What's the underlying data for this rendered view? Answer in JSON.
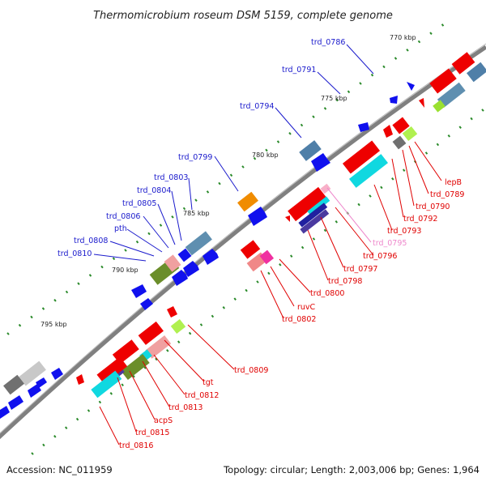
{
  "title": "Thermomicrobium roseum DSM 5159, complete genome",
  "footer": {
    "accession": "Accession: NC_011959",
    "summary": "Topology: circular; Length: 2,003,006 bp; Genes: 1,964"
  },
  "colors": {
    "backbone": "#808080",
    "ticks": "#2a8a2a",
    "forward_label": "#1a1acc",
    "reverse_label": "#e00000",
    "pink_label": "#ee88cc"
  },
  "scale_marks": [
    "770 kbp",
    "775 kbp",
    "780 kbp",
    "785 kbp",
    "790 kbp",
    "795 kbp"
  ],
  "forward_labels": [
    "trd_0786",
    "trd_0791",
    "trd_0794",
    "trd_0799",
    "trd_0803",
    "trd_0804",
    "trd_0805",
    "trd_0806",
    "pth",
    "trd_0808",
    "trd_0810"
  ],
  "reverse_labels": [
    "lepB",
    "trd_0789",
    "trd_0790",
    "trd_0792",
    "trd_0793",
    "trd_0795",
    "trd_0796",
    "trd_0797",
    "trd_0798",
    "trd_0800",
    "ruvC",
    "trd_0802",
    "trd_0809",
    "tgt",
    "trd_0812",
    "trd_0813",
    "acpS",
    "trd_0815",
    "trd_0816"
  ]
}
